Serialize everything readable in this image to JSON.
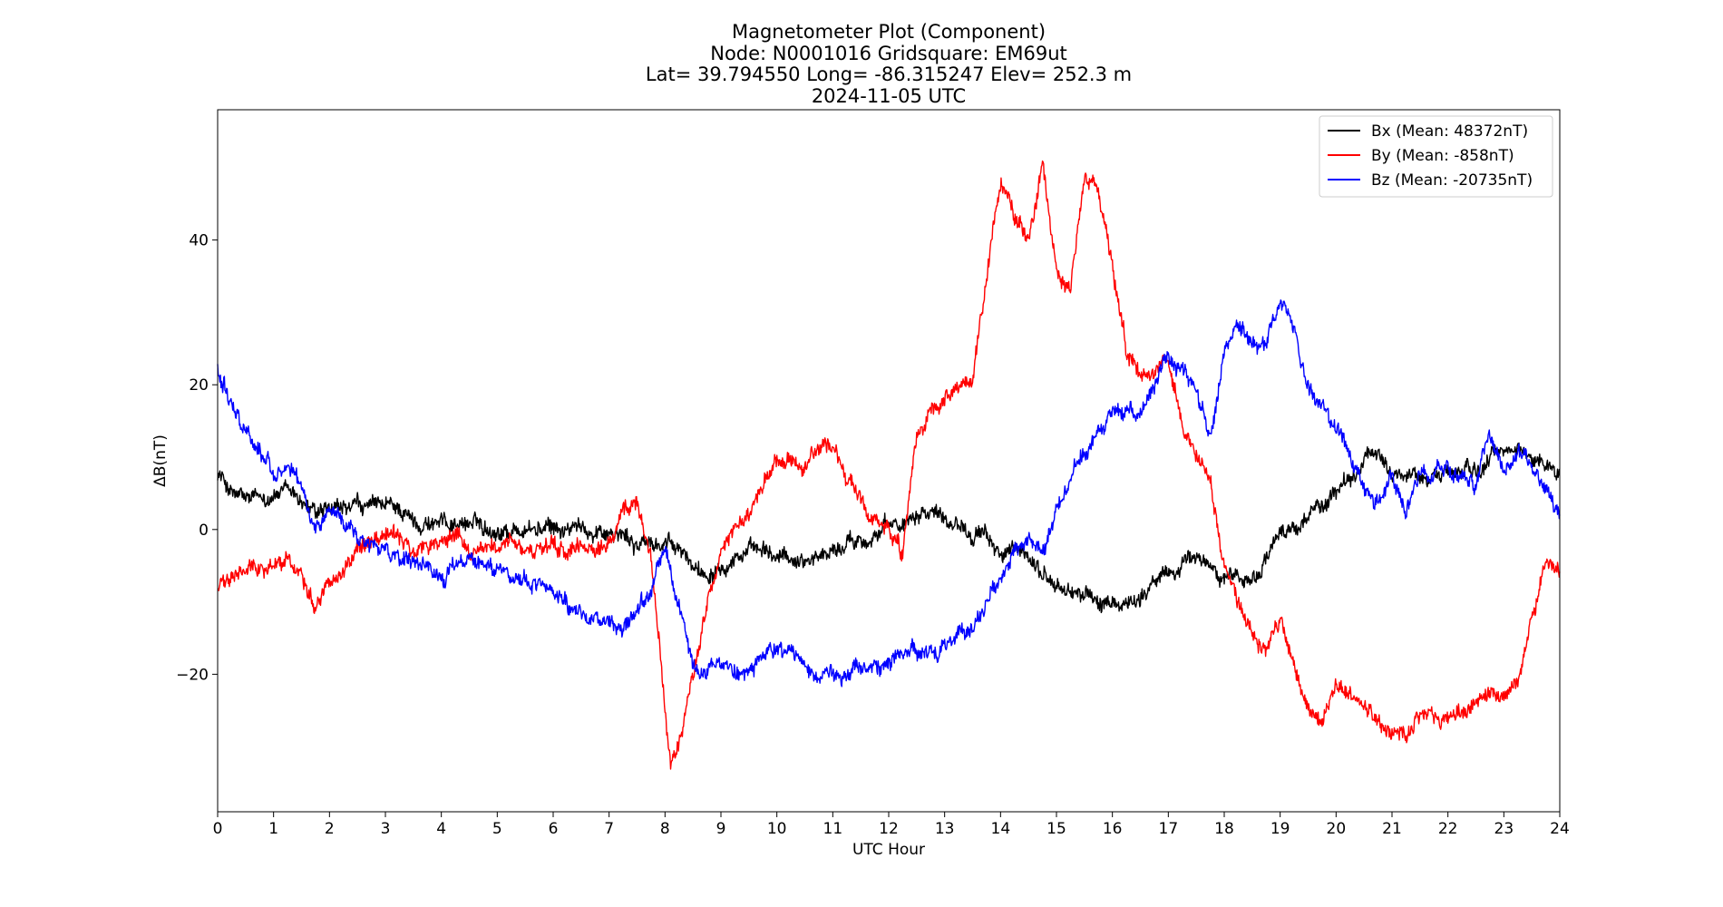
{
  "chart_data": {
    "type": "line",
    "title_lines": [
      "Magnetometer Plot (Component)",
      "Node:  N0001016     Gridsquare:  EM69ut",
      "Lat= 39.794550    Long= -86.315247    Elev= 252.3 m",
      "2024-11-05  UTC"
    ],
    "xlabel": "UTC Hour",
    "ylabel": "ΔB(nT)",
    "xlim": [
      0,
      24
    ],
    "ylim": [
      -39,
      58
    ],
    "xticks": [
      0,
      1,
      2,
      3,
      4,
      5,
      6,
      7,
      8,
      9,
      10,
      11,
      12,
      13,
      14,
      15,
      16,
      17,
      18,
      19,
      20,
      21,
      22,
      23,
      24
    ],
    "yticks": [
      -20,
      0,
      20,
      40
    ],
    "ytick_labels": [
      "−20",
      "0",
      "20",
      "40"
    ],
    "grid": false,
    "legend_position": "top-right",
    "series": [
      {
        "name": "Bx (Mean: 48372nT)",
        "color": "#000000",
        "x": [
          0,
          0.25,
          0.5,
          0.75,
          1,
          1.25,
          1.5,
          1.75,
          2,
          2.5,
          3,
          3.25,
          3.5,
          4,
          4.5,
          5,
          5.5,
          6,
          6.5,
          7,
          7.5,
          8,
          8.25,
          8.5,
          8.75,
          9,
          9.5,
          10,
          10.5,
          11,
          11.5,
          12,
          12.25,
          12.5,
          12.75,
          13,
          13.5,
          14,
          14.5,
          14.75,
          15,
          15.5,
          16,
          16.5,
          17,
          17.5,
          18,
          18.5,
          19,
          19.5,
          20,
          20.5,
          20.75,
          21,
          21.5,
          22,
          22.5,
          23,
          23.25,
          23.5,
          24
        ],
        "y": [
          8,
          5,
          4,
          4,
          5,
          5,
          4,
          2,
          2,
          3,
          3,
          3,
          1,
          1,
          1,
          0,
          0,
          0,
          0,
          0,
          -2,
          -2,
          -3,
          -5,
          -6,
          -4,
          -3,
          -4,
          -4,
          -3,
          -1,
          0,
          1,
          3,
          3,
          2,
          0,
          -3,
          -4,
          -6,
          -8,
          -9,
          -11,
          -9,
          -6,
          -4,
          -6,
          -7,
          -1,
          2,
          5,
          9,
          11,
          8,
          7,
          8,
          8,
          11,
          11,
          10,
          8
        ]
      },
      {
        "name": "By (Mean: -858nT)",
        "color": "#ff0000",
        "x": [
          0,
          0.25,
          0.5,
          0.75,
          1,
          1.25,
          1.5,
          1.75,
          2,
          2.5,
          2.75,
          3,
          3.5,
          4,
          4.25,
          4.5,
          5,
          5.5,
          6,
          6.5,
          7,
          7.25,
          7.5,
          7.75,
          8,
          8.1,
          8.25,
          8.5,
          8.75,
          9,
          9.25,
          9.5,
          10,
          10.5,
          10.75,
          11,
          11.25,
          11.5,
          11.75,
          12,
          12.25,
          12.5,
          12.75,
          13,
          13.5,
          14,
          14.25,
          14.5,
          14.75,
          15,
          15.25,
          15.5,
          15.75,
          16,
          16.25,
          16.5,
          17,
          17.25,
          17.5,
          17.75,
          18,
          18.5,
          18.75,
          19,
          19.25,
          19.5,
          19.75,
          20,
          20.25,
          20.5,
          21,
          21.25,
          21.5,
          22,
          22.5,
          22.75,
          23,
          23.25,
          23.5,
          23.75,
          24
        ],
        "y": [
          -8,
          -7,
          -6,
          -5,
          -5,
          -4,
          -6,
          -10,
          -7,
          -3,
          -1,
          0,
          -3,
          -2,
          0,
          -3,
          -2,
          -3,
          -3,
          -3,
          -2,
          2,
          4,
          -3,
          -25,
          -33,
          -29,
          -20,
          -10,
          -4,
          0,
          2,
          9,
          8,
          12,
          11,
          7,
          4,
          1,
          0,
          -4,
          12,
          16,
          17,
          21,
          48,
          43,
          40,
          51,
          35,
          33,
          47,
          48,
          37,
          24,
          21,
          24,
          14,
          10,
          6,
          -5,
          -14,
          -17,
          -11,
          -19,
          -25,
          -28,
          -21,
          -23,
          -25,
          -28,
          -28,
          -26,
          -26,
          -24,
          -22,
          -22,
          -21,
          -12,
          -4,
          -6
        ]
      },
      {
        "name": "Bz (Mean: -20735nT)",
        "color": "#0000ff",
        "x": [
          0,
          0.25,
          0.5,
          0.75,
          1,
          1.25,
          1.5,
          1.75,
          2,
          2.5,
          3,
          3.5,
          4,
          4.5,
          5,
          5.5,
          6,
          6.5,
          7,
          7.25,
          7.5,
          7.75,
          8,
          8.25,
          8.5,
          9,
          9.5,
          10,
          10.5,
          11,
          11.5,
          12,
          12.5,
          13,
          13.5,
          14,
          14.25,
          14.5,
          14.75,
          15,
          15.5,
          16,
          16.5,
          17,
          17.25,
          17.5,
          17.75,
          18,
          18.25,
          18.5,
          18.75,
          19,
          19.25,
          19.5,
          19.75,
          20,
          20.25,
          20.5,
          20.75,
          21,
          21.25,
          21.5,
          22,
          22.5,
          22.75,
          23,
          23.25,
          23.5,
          23.75,
          24
        ],
        "y": [
          22,
          18,
          14,
          11,
          8,
          8,
          6,
          0,
          3,
          -1,
          -3,
          -5,
          -7,
          -4,
          -5,
          -7,
          -9,
          -11,
          -13,
          -14,
          -12,
          -9,
          -3,
          -11,
          -19,
          -19,
          -19,
          -17,
          -18,
          -20,
          -20,
          -18,
          -17,
          -16,
          -14,
          -7,
          -3,
          -1,
          -5,
          3,
          10,
          17,
          16,
          24,
          22,
          20,
          13,
          25,
          28,
          26,
          25,
          31,
          28,
          20,
          18,
          14,
          10,
          6,
          4,
          7,
          2,
          7,
          8,
          7,
          14,
          8,
          10,
          10,
          5,
          2
        ]
      }
    ]
  }
}
